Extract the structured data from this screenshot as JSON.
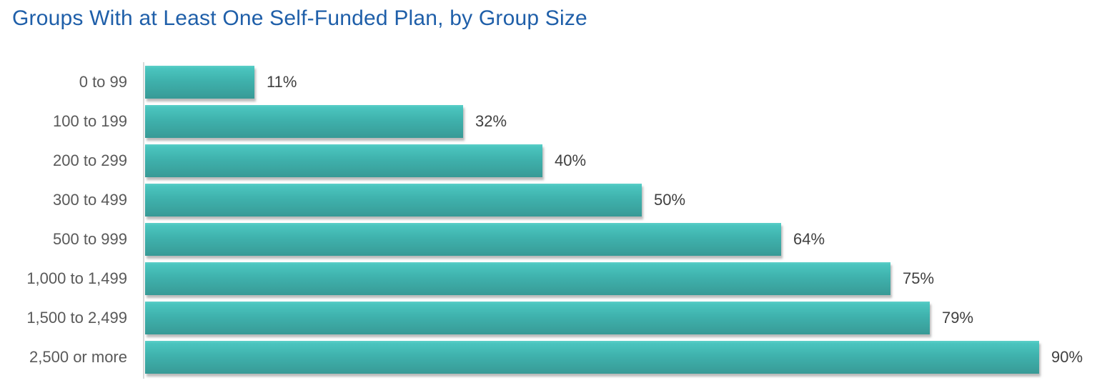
{
  "title": {
    "text": "Groups With at Least One Self-Funded Plan, by Group Size",
    "color": "#1F5FA9"
  },
  "chart_data": {
    "type": "bar",
    "orientation": "horizontal",
    "title": "Groups With at Least One Self-Funded Plan, by Group Size",
    "xlabel": "",
    "ylabel": "",
    "categories": [
      "0 to 99",
      "100 to 199",
      "200 to 299",
      "300 to 499",
      "500 to 999",
      "1,000 to 1,499",
      "1,500 to 2,499",
      "2,500 or more"
    ],
    "values": [
      11,
      32,
      40,
      50,
      64,
      75,
      79,
      90
    ],
    "value_labels": [
      "11%",
      "32%",
      "40%",
      "50%",
      "64%",
      "75%",
      "79%",
      "90%"
    ],
    "value_unit": "%",
    "xlim": [
      0,
      96
    ],
    "grid": false,
    "legend": false,
    "data_labels": "outside-end"
  },
  "colors": {
    "bar_gradient_top": "#5ED0C9",
    "bar_gradient_upper": "#4BC5BF",
    "bar_gradient_lower": "#3FB2AD",
    "bar_gradient_bottom": "#389A96",
    "axis_line": "#D9D9D9",
    "category_label": "#595959",
    "value_label": "#404040",
    "background": "#FFFFFF"
  }
}
